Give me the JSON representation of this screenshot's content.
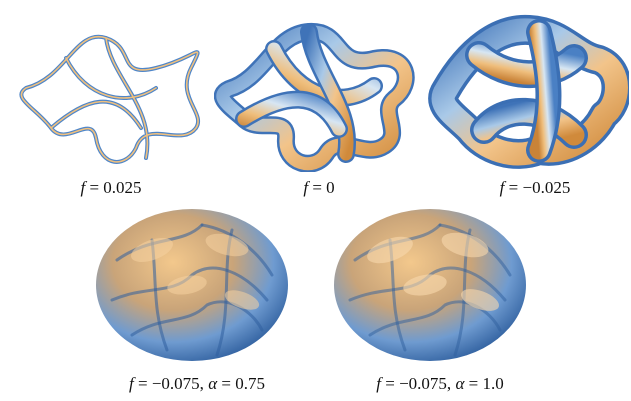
{
  "figure": {
    "panels": [
      {
        "caption_var": "f",
        "caption_eq": " = 0.025",
        "caption_extra": ""
      },
      {
        "caption_var": "f",
        "caption_eq": " = 0",
        "caption_extra": ""
      },
      {
        "caption_var": "f",
        "caption_eq": " = −0.025",
        "caption_extra": ""
      },
      {
        "caption_var": "f",
        "caption_eq": " = −0.075, ",
        "caption_extra_var": "α",
        "caption_extra": " = 0.75"
      },
      {
        "caption_var": "f",
        "caption_eq": " = −0.075, ",
        "caption_extra_var": "α",
        "caption_extra": " = 1.0"
      }
    ]
  },
  "colors": {
    "tube_blue": "#4f86c9",
    "tube_light": "#cfe3f4",
    "tube_orange": "#d9913f",
    "tube_tan": "#f0c07e"
  }
}
